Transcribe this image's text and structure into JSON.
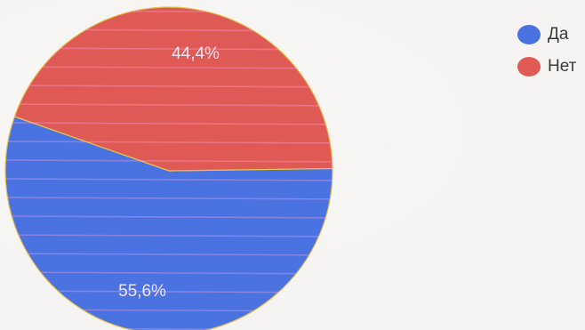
{
  "chart_data": {
    "type": "pie",
    "categories": [
      "Да",
      "Нет"
    ],
    "values": [
      55.6,
      44.4
    ],
    "labels": [
      "55,6%",
      "44,4%"
    ],
    "colors": [
      "#4a72e0",
      "#df5a55"
    ],
    "legend_position": "top-right"
  },
  "legend": {
    "items": [
      {
        "label": "Да",
        "color": "#4a72e0"
      },
      {
        "label": "Нет",
        "color": "#df5a55"
      }
    ]
  }
}
